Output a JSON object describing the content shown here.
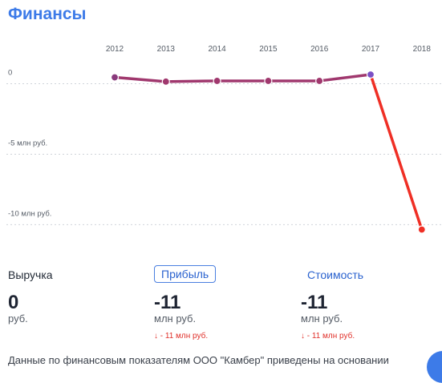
{
  "title": "Финансы",
  "metrics": {
    "revenue": {
      "label": "Выручка",
      "value": "0",
      "unit": "руб."
    },
    "profit": {
      "label": "Прибыль",
      "value": "-11",
      "unit": "млн руб.",
      "delta": "↓ - 11 млн руб."
    },
    "value": {
      "label": "Стоимость",
      "value": "-11",
      "unit": "млн руб.",
      "delta": "↓ - 11 млн руб."
    }
  },
  "footer_text": "Данные по финансовым показателям ООО \"Камбер\" приведены на основании",
  "colors": {
    "accent": "#3d7be8",
    "line_normal": "#a0386e",
    "line_negative": "#ef2f25",
    "point_purple": "#7b4fc4"
  },
  "chart_data": {
    "type": "line",
    "title": "",
    "xlabel": "",
    "ylabel": "",
    "x": [
      "2012",
      "2013",
      "2014",
      "2015",
      "2016",
      "2017",
      "2018"
    ],
    "series": [
      {
        "values": [
          0,
          -0.3,
          -0.25,
          -0.25,
          -0.25,
          0.2,
          -10.8
        ]
      }
    ],
    "y_ticks": [
      {
        "value": 0,
        "label": "0"
      },
      {
        "value": -5,
        "label": "-5 млн руб."
      },
      {
        "value": -10,
        "label": "-10 млн руб."
      }
    ],
    "ylim": [
      -11,
      0.6
    ],
    "grid": true
  }
}
